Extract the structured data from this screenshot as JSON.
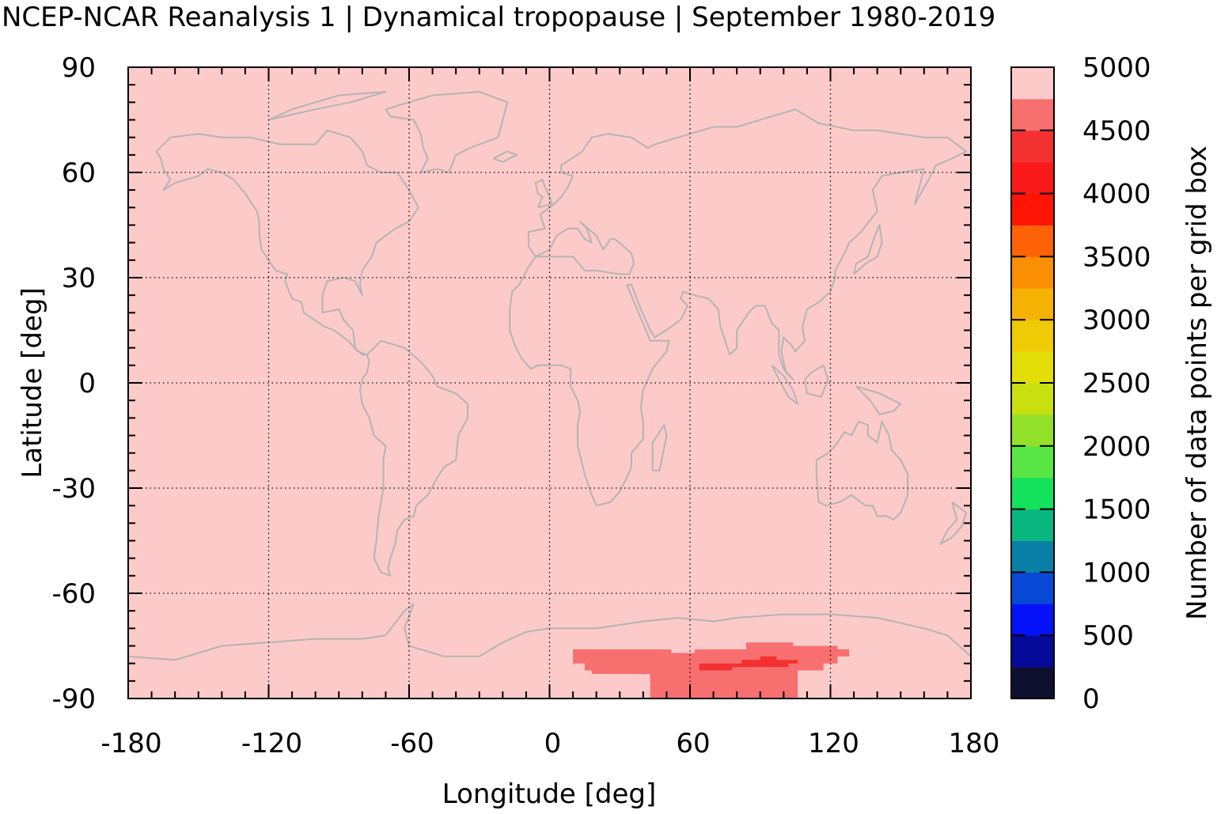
{
  "chart_data": {
    "type": "heatmap",
    "title": "NCEP-NCAR Reanalysis 1 | Dynamical tropopause | September 1980-2019",
    "xlabel": "Longitude [deg]",
    "ylabel": "Latitude [deg]",
    "colorbar_label": "Number of data points per grid box",
    "xlim": [
      -180,
      180
    ],
    "ylim": [
      -90,
      90
    ],
    "xticks": [
      -180,
      -120,
      -60,
      0,
      60,
      120,
      180
    ],
    "yticks": [
      90,
      60,
      30,
      0,
      -30,
      -60,
      -90
    ],
    "xtick_labels": [
      "-180",
      "-120",
      "-60",
      "0",
      "60",
      "120",
      "180"
    ],
    "ytick_labels": [
      "90",
      "60",
      "30",
      "0",
      "-30",
      "-60",
      "-90"
    ],
    "grid": true,
    "background_value": 5000,
    "background_color": "#fdcaca",
    "coastline_color": "#b4b4b4",
    "colorbar": {
      "min": 0,
      "max": 5000,
      "step": 250,
      "tick_values": [
        0,
        500,
        1000,
        1500,
        2000,
        2500,
        3000,
        3500,
        4000,
        4500,
        5000
      ],
      "tick_labels": [
        "0",
        "500",
        "1000",
        "1500",
        "2000",
        "2500",
        "3000",
        "3500",
        "4000",
        "4500",
        "5000"
      ],
      "colors": [
        "#0f0f30",
        "#060a99",
        "#0512f8",
        "#0848d6",
        "#0a7fa6",
        "#08b67f",
        "#14e15c",
        "#58e645",
        "#93e02a",
        "#c9e010",
        "#e3de07",
        "#efcb05",
        "#f6b203",
        "#fb8f03",
        "#fd6207",
        "#fd1405",
        "#fa1a1a",
        "#f43131",
        "#f76f6f",
        "#fdcaca"
      ]
    },
    "regions": [
      {
        "value": 4750,
        "color": "#f76f6f",
        "polygon": [
          [
            10,
            -76
          ],
          [
            52,
            -76
          ],
          [
            52,
            -77
          ],
          [
            62,
            -77
          ],
          [
            62,
            -76
          ],
          [
            84,
            -76
          ],
          [
            84,
            -74
          ],
          [
            104,
            -74
          ],
          [
            104,
            -75
          ],
          [
            123,
            -75
          ],
          [
            123,
            -76
          ],
          [
            128,
            -76
          ],
          [
            128,
            -78
          ],
          [
            123,
            -78
          ],
          [
            123,
            -80
          ],
          [
            117,
            -80
          ],
          [
            117,
            -82
          ],
          [
            106,
            -82
          ],
          [
            106,
            -90
          ],
          [
            43,
            -90
          ],
          [
            43,
            -83
          ],
          [
            18,
            -83
          ],
          [
            18,
            -82
          ],
          [
            15,
            -82
          ],
          [
            15,
            -80
          ],
          [
            10,
            -80
          ]
        ]
      },
      {
        "value": 4250,
        "color": "#f43131",
        "polygon": [
          [
            64,
            -80
          ],
          [
            82,
            -80
          ],
          [
            82,
            -79
          ],
          [
            90,
            -79
          ],
          [
            90,
            -78
          ],
          [
            97,
            -78
          ],
          [
            97,
            -79
          ],
          [
            106,
            -79
          ],
          [
            106,
            -80
          ],
          [
            102,
            -80
          ],
          [
            102,
            -81
          ],
          [
            78,
            -81
          ],
          [
            78,
            -82
          ],
          [
            64,
            -82
          ]
        ]
      }
    ]
  }
}
